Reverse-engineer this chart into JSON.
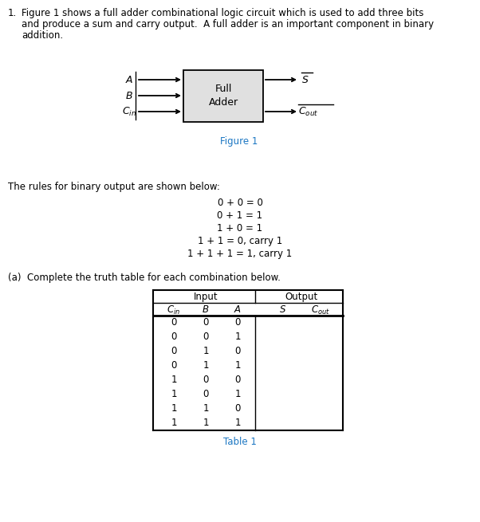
{
  "title_number": "1.",
  "intro_text_line1": "Figure 1 shows a full adder combinational logic circuit which is used to add three bits",
  "intro_text_line2": "and produce a sum and carry output.  A full adder is an important component in binary",
  "intro_text_line3": "addition.",
  "figure_label": "Figure 1",
  "rules_header": "The rules for binary output are shown below:",
  "rules": [
    "0 + 0 = 0",
    "0 + 1 = 1",
    "1 + 0 = 1",
    "1 + 1 = 0, carry 1",
    "1 + 1 + 1 = 1, carry 1"
  ],
  "part_a_text": "(a)  Complete the truth table for each combination below.",
  "table_caption": "Table 1",
  "table_rows": [
    [
      0,
      0,
      0
    ],
    [
      0,
      0,
      1
    ],
    [
      0,
      1,
      0
    ],
    [
      0,
      1,
      1
    ],
    [
      1,
      0,
      0
    ],
    [
      1,
      0,
      1
    ],
    [
      1,
      1,
      0
    ],
    [
      1,
      1,
      1
    ]
  ],
  "box_fill": "#e0e0e0",
  "box_edge": "#000000",
  "text_color": "#000000",
  "bg_color": "#ffffff",
  "fig_color": "#1c77c3",
  "fs_body": 8.5,
  "fs_diagram": 9.0,
  "fs_table": 8.5
}
